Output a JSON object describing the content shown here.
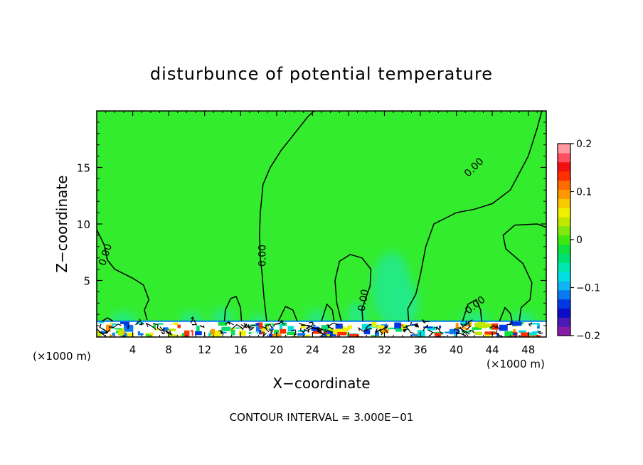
{
  "chart_data": {
    "type": "heatmap",
    "title": "disturbunce of potential temperature",
    "xlabel": "X−coordinate",
    "ylabel": "Z−coordinate",
    "x_unit_left": "(×1000 m)",
    "x_unit_right": "(×1000 m)",
    "xlim": [
      0,
      50
    ],
    "ylim": [
      0,
      20
    ],
    "x_ticks": [
      4,
      8,
      12,
      16,
      20,
      24,
      28,
      32,
      36,
      40,
      44,
      48
    ],
    "x_tick_labels": [
      "4",
      "8",
      "12",
      "16",
      "20",
      "24",
      "28",
      "32",
      "36",
      "40",
      "44",
      "48"
    ],
    "y_ticks": [
      5,
      10,
      15
    ],
    "y_tick_labels": [
      "5",
      "10",
      "15"
    ],
    "field_value_dominant": 0.0,
    "contour_interval_text": "CONTOUR INTERVAL = 3.000E−01",
    "contour_labels": [
      "0.00",
      "0.00",
      "0.00",
      "0.00",
      "0.00",
      "0.00"
    ],
    "colorbar": {
      "range": [
        -0.2,
        0.2
      ],
      "tick_values": [
        -0.2,
        -0.1,
        0,
        0.1,
        0.2
      ],
      "tick_labels": [
        "−0.2",
        "−0.1",
        "0",
        "0.1",
        "0.2"
      ],
      "colors": [
        "#8a1aa8",
        "#4b1ab5",
        "#0c0cc8",
        "#0038e6",
        "#0a78f0",
        "#10b4f0",
        "#00e0e0",
        "#00e8b0",
        "#00e070",
        "#10e040",
        "#40e810",
        "#80e810",
        "#c0e800",
        "#f0f000",
        "#f8c800",
        "#ff9800",
        "#ff6a00",
        "#ff3000",
        "#f01010",
        "#ff5060",
        "#ff9aa0"
      ]
    },
    "colors": {
      "background_field": "#34ec2e",
      "plume": "#23ea8a",
      "surface_layer": "#ffffff"
    }
  }
}
